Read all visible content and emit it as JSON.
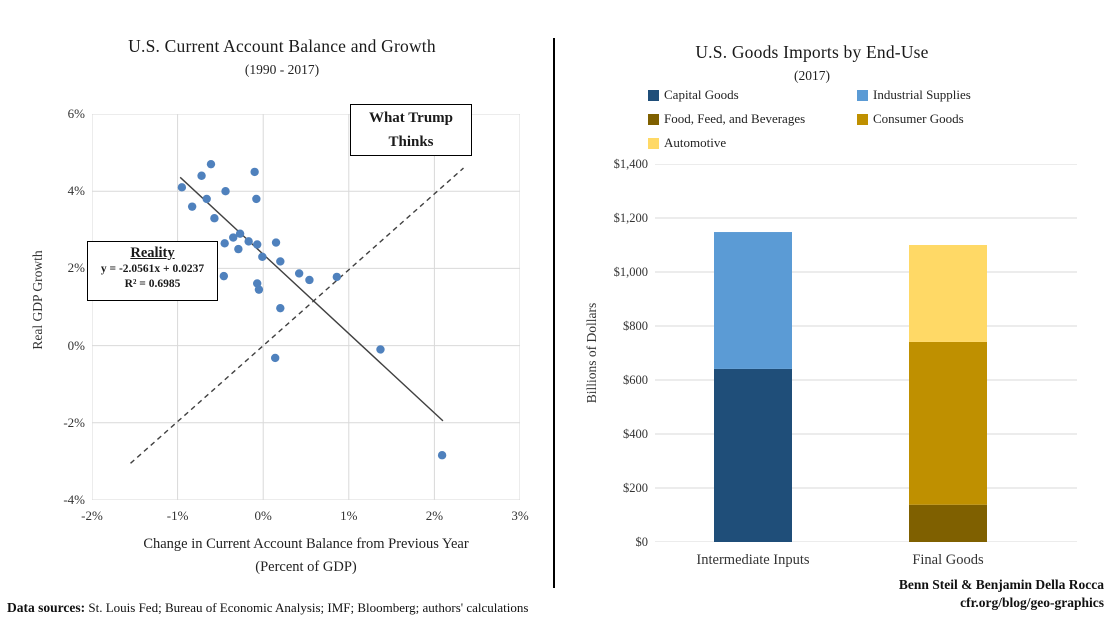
{
  "footer": {
    "label": "Data sources:",
    "text": " St. Louis Fed; Bureau of Economic Analysis; IMF; Bloomberg; authors' calculations"
  },
  "credit": {
    "line1": "Benn Steil & Benjamin Della Rocca",
    "line2": "cfr.org/blog/geo-graphics"
  },
  "chart_data": [
    {
      "type": "scatter",
      "title": "U.S. Current Account Balance and Growth",
      "subtitle": "(1990 - 2017)",
      "ylabel": "Real GDP Growth",
      "xlabel_line1": "Change in Current Account Balance from Previous Year",
      "xlabel_line2": "(Percent of GDP)",
      "xlim": [
        -2,
        3
      ],
      "ylim": [
        -4,
        6
      ],
      "xticks": [
        -2,
        -1,
        0,
        1,
        2,
        3
      ],
      "xtick_labels": [
        "-2%",
        "-1%",
        "0%",
        "1%",
        "2%",
        "3%"
      ],
      "yticks": [
        6,
        4,
        2,
        0,
        -2,
        -4
      ],
      "ytick_labels": [
        "6%",
        "4%",
        "2%",
        "0%",
        "-2%",
        "-4%"
      ],
      "grid": true,
      "point_color": "#4F81BD",
      "points": [
        [
          -0.95,
          4.1
        ],
        [
          -0.72,
          4.4
        ],
        [
          -0.61,
          4.7
        ],
        [
          -0.1,
          4.5
        ],
        [
          -0.44,
          4.0
        ],
        [
          -0.66,
          3.8
        ],
        [
          -0.08,
          3.8
        ],
        [
          -0.83,
          3.6
        ],
        [
          -0.57,
          3.3
        ],
        [
          -0.27,
          2.9
        ],
        [
          -0.35,
          2.8
        ],
        [
          -0.45,
          2.65
        ],
        [
          -0.29,
          2.5
        ],
        [
          -0.17,
          2.7
        ],
        [
          -0.07,
          2.62
        ],
        [
          0.15,
          2.67
        ],
        [
          -0.01,
          2.3
        ],
        [
          0.2,
          2.18
        ],
        [
          0.42,
          1.87
        ],
        [
          0.54,
          1.7
        ],
        [
          0.86,
          1.78
        ],
        [
          -0.46,
          1.8
        ],
        [
          -0.07,
          1.61
        ],
        [
          -0.05,
          1.45
        ],
        [
          0.2,
          0.97
        ],
        [
          0.14,
          -0.32
        ],
        [
          1.37,
          -0.1
        ],
        [
          2.09,
          -2.84
        ]
      ],
      "regression_line": {
        "x1": -0.97,
        "y1": 4.36,
        "x2": 2.1,
        "y2": -1.95,
        "style": "solid",
        "color": "#404040"
      },
      "trump_line": {
        "x1": -1.55,
        "y1": -3.05,
        "x2": 2.34,
        "y2": 4.6,
        "style": "dashed",
        "color": "#404040"
      },
      "annotations": {
        "trump_box": {
          "text": "What Trump Thinks"
        },
        "reality_box": {
          "title": "Reality",
          "equation": "y = -2.0561x + 0.0237",
          "r_squared": "R² = 0.6985"
        }
      }
    },
    {
      "type": "bar",
      "stacked": true,
      "title": "U.S. Goods Imports by End-Use",
      "subtitle": "(2017)",
      "ylabel": "Billions of Dollars",
      "categories": [
        "Intermediate Inputs",
        "Final Goods"
      ],
      "series": [
        {
          "name": "Capital Goods",
          "color": "#1F4E79",
          "values": [
            641,
            0
          ]
        },
        {
          "name": "Industrial Supplies",
          "color": "#5B9BD5",
          "values": [
            507,
            0
          ]
        },
        {
          "name": "Food, Feed, and Beverages",
          "color": "#7F6000",
          "values": [
            0,
            138
          ]
        },
        {
          "name": "Consumer Goods",
          "color": "#BF9000",
          "values": [
            0,
            603
          ]
        },
        {
          "name": "Automotive",
          "color": "#FFD966",
          "values": [
            0,
            359
          ]
        }
      ],
      "ylim": [
        0,
        1400
      ],
      "yticks": [
        0,
        200,
        400,
        600,
        800,
        1000,
        1200,
        1400
      ],
      "ytick_labels": [
        "$0",
        "$200",
        "$400",
        "$600",
        "$800",
        "$1,000",
        "$1,200",
        "$1,400"
      ],
      "grid": true,
      "legend_position": "top"
    }
  ]
}
